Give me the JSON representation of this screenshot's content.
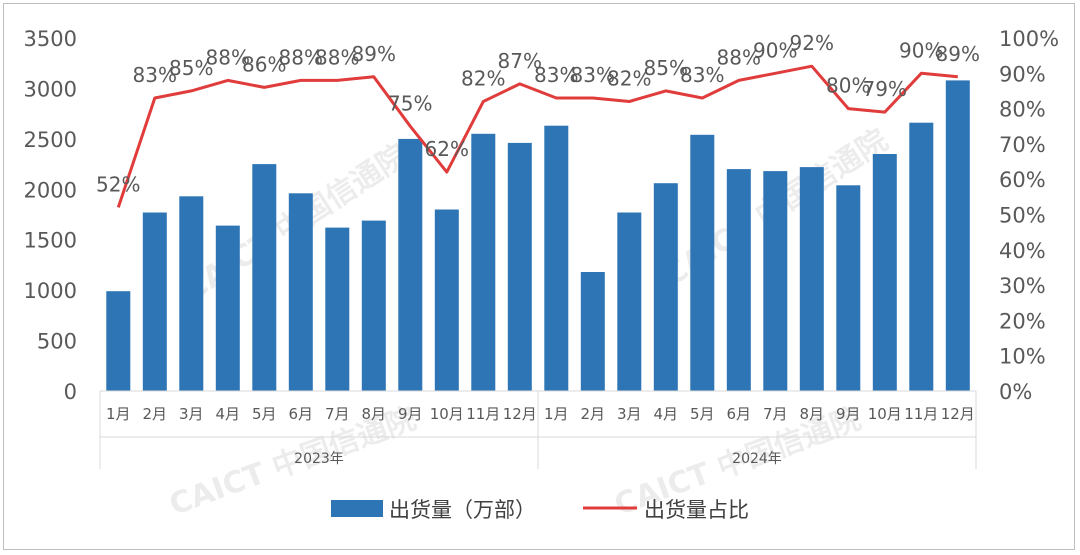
{
  "chart_data": {
    "type": "bar",
    "title": "",
    "xlabel": "",
    "ylabel": "",
    "ylim": [
      0,
      3500
    ],
    "y2lim": [
      0,
      1.0
    ],
    "y_ticks": [
      "0",
      "500",
      "1000",
      "1500",
      "2000",
      "2500",
      "3000",
      "3500"
    ],
    "y2_ticks": [
      "0%",
      "10%",
      "20%",
      "30%",
      "40%",
      "50%",
      "60%",
      "70%",
      "80%",
      "90%",
      "100%"
    ],
    "grid": false,
    "legend_position": "bottom",
    "groups": [
      {
        "label": "2023年",
        "count": 12
      },
      {
        "label": "2024年",
        "count": 12
      }
    ],
    "categories": [
      "1月",
      "2月",
      "3月",
      "4月",
      "5月",
      "6月",
      "7月",
      "8月",
      "9月",
      "10月",
      "11月",
      "12月",
      "1月",
      "2月",
      "3月",
      "4月",
      "5月",
      "6月",
      "7月",
      "8月",
      "9月",
      "10月",
      "11月",
      "12月"
    ],
    "series": [
      {
        "name": "出货量（万部）",
        "type": "bar",
        "axis": "left",
        "color": "#2e75b6",
        "values": [
          990,
          1770,
          1930,
          1640,
          2250,
          1960,
          1620,
          1690,
          2500,
          1800,
          2550,
          2460,
          2630,
          1180,
          1770,
          2060,
          2540,
          2200,
          2180,
          2220,
          2040,
          2350,
          2660,
          3080
        ]
      },
      {
        "name": "出货量占比",
        "type": "line",
        "axis": "right",
        "color": "#e03c3c",
        "values": [
          0.52,
          0.83,
          0.85,
          0.88,
          0.86,
          0.88,
          0.88,
          0.89,
          0.75,
          0.62,
          0.82,
          0.87,
          0.83,
          0.83,
          0.82,
          0.85,
          0.83,
          0.88,
          0.9,
          0.92,
          0.8,
          0.79,
          0.9,
          0.89
        ],
        "labels": [
          "52%",
          "83%",
          "85%",
          "88%",
          "86%",
          "88%",
          "88%",
          "89%",
          "75%",
          "62%",
          "82%",
          "87%",
          "83%",
          "83%",
          "82%",
          "85%",
          "83%",
          "88%",
          "90%",
          "92%",
          "80%",
          "79%",
          "90%",
          "89%"
        ]
      }
    ]
  },
  "watermark": "CAICT 中国信通院",
  "colors": {
    "bar": "#2e75b6",
    "line": "#e03c3c",
    "axis": "#d9d9d9",
    "text": "#595959"
  }
}
